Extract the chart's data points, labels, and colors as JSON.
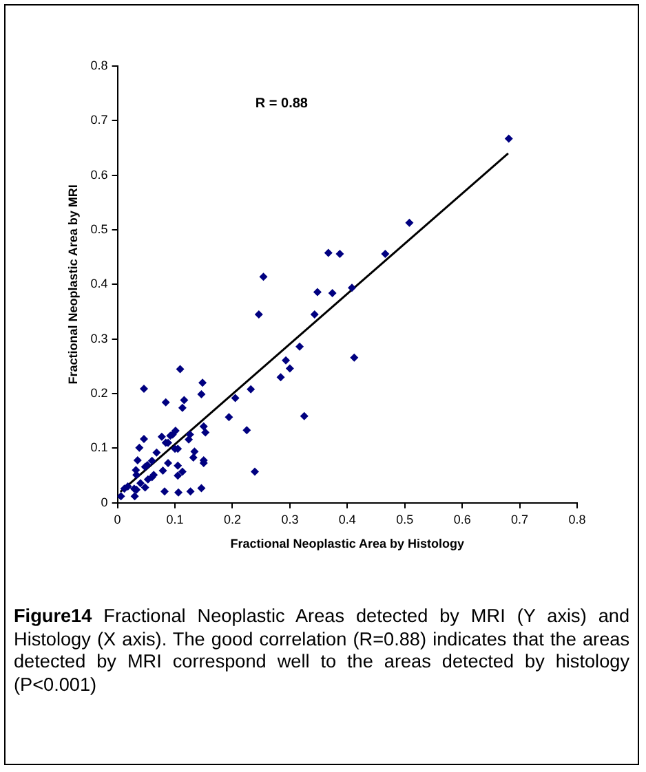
{
  "chart_data": {
    "type": "scatter",
    "xlabel": "Fractional Neoplastic Area by Histology",
    "ylabel": "Fractional Neoplastic Area by MRI",
    "xlim": [
      0,
      0.8
    ],
    "xticks": [
      0,
      0.1,
      0.2,
      0.3,
      0.4,
      0.5,
      0.6,
      0.7,
      0.8
    ],
    "ylim": [
      0,
      0.8
    ],
    "yticks": [
      0,
      0.1,
      0.2,
      0.3,
      0.4,
      0.5,
      0.6,
      0.7,
      0.8
    ],
    "grid": false,
    "legend": false,
    "marker": "diamond",
    "series": [
      {
        "type": "scatter",
        "color": "#000080",
        "x": [
          0.681,
          0.508,
          0.367,
          0.387,
          0.466,
          0.254,
          0.348,
          0.374,
          0.408,
          0.246,
          0.343,
          0.317,
          0.293,
          0.3,
          0.284,
          0.412,
          0.232,
          0.205,
          0.194,
          0.225,
          0.325,
          0.239,
          0.109,
          0.046,
          0.148,
          0.146,
          0.116,
          0.084,
          0.113,
          0.101,
          0.096,
          0.092,
          0.077,
          0.084,
          0.088,
          0.1,
          0.124,
          0.126,
          0.15,
          0.153,
          0.038,
          0.046,
          0.035,
          0.068,
          0.06,
          0.052,
          0.048,
          0.032,
          0.033,
          0.04,
          0.06,
          0.063,
          0.053,
          0.048,
          0.029,
          0.033,
          0.03,
          0.012,
          0.006,
          0.018,
          0.079,
          0.088,
          0.105,
          0.105,
          0.113,
          0.134,
          0.132,
          0.15,
          0.15,
          0.082,
          0.106,
          0.127,
          0.146,
          0.105
        ],
        "values": [
          0.667,
          0.513,
          0.458,
          0.456,
          0.456,
          0.414,
          0.386,
          0.384,
          0.394,
          0.345,
          0.345,
          0.286,
          0.261,
          0.246,
          0.23,
          0.266,
          0.208,
          0.192,
          0.157,
          0.133,
          0.159,
          0.057,
          0.245,
          0.209,
          0.22,
          0.199,
          0.188,
          0.184,
          0.174,
          0.132,
          0.125,
          0.123,
          0.121,
          0.11,
          0.11,
          0.099,
          0.116,
          0.125,
          0.14,
          0.129,
          0.101,
          0.117,
          0.078,
          0.092,
          0.077,
          0.069,
          0.066,
          0.06,
          0.051,
          0.036,
          0.047,
          0.051,
          0.043,
          0.028,
          0.026,
          0.024,
          0.012,
          0.026,
          0.012,
          0.03,
          0.059,
          0.073,
          0.068,
          0.05,
          0.057,
          0.094,
          0.083,
          0.078,
          0.073,
          0.021,
          0.019,
          0.021,
          0.027,
          0.099
        ]
      },
      {
        "type": "line",
        "color": "#000000",
        "marker": "none",
        "x": [
          0.005,
          0.68
        ],
        "values": [
          0.02,
          0.64
        ]
      }
    ],
    "annotations": [
      "R = 0.88",
      "Figure14 Fractional Neoplastic Areas detected by MRI (Y axis) and Histology (X axis). The good correlation (R=0.88) indicates that the areas detected by MRI correspond well to the areas detected by histology (P<0.001)"
    ]
  }
}
